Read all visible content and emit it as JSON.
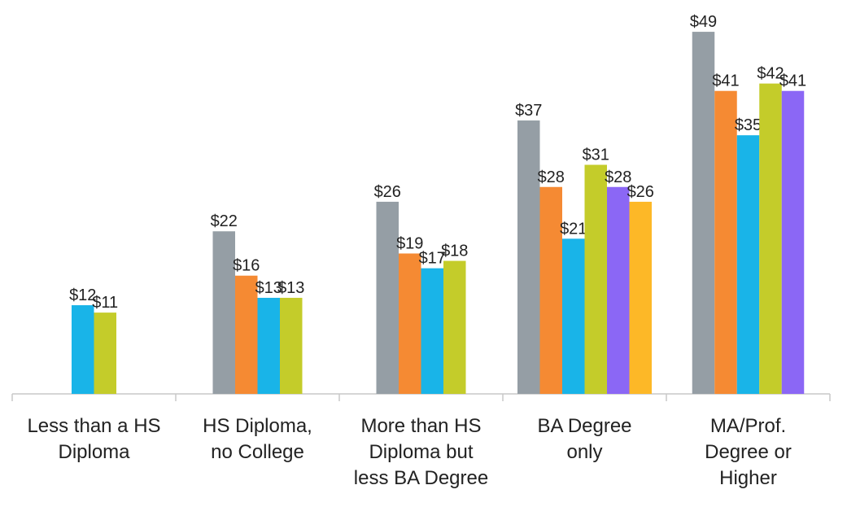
{
  "chart_data": {
    "type": "bar",
    "categories": [
      "Less than a HS\nDiploma",
      "HS Diploma,\nno College",
      "More than HS\nDiploma but\nless BA Degree",
      "BA Degree\nonly",
      "MA/Prof.\nDegree or\nHigher"
    ],
    "series": [
      {
        "color": "#959ea5",
        "values": [
          null,
          22,
          26,
          37,
          49
        ],
        "value_labels": [
          null,
          "$22",
          "$26",
          "$37",
          "$49"
        ]
      },
      {
        "color": "#f58a33",
        "values": [
          null,
          16,
          19,
          28,
          41
        ],
        "value_labels": [
          null,
          "$16",
          "$19",
          "$28",
          "$41"
        ]
      },
      {
        "color": "#19b4e8",
        "values": [
          12,
          13,
          17,
          21,
          35
        ],
        "value_labels": [
          "$12",
          "$13",
          "$17",
          "$21",
          "$35"
        ]
      },
      {
        "color": "#c4cc2a",
        "values": [
          11,
          13,
          18,
          31,
          42
        ],
        "value_labels": [
          "$11",
          "$13",
          "$18",
          "$31",
          "$42"
        ]
      },
      {
        "color": "#8b67f5",
        "values": [
          null,
          null,
          null,
          28,
          41
        ],
        "value_labels": [
          null,
          null,
          null,
          "$28",
          "$41"
        ]
      },
      {
        "color": "#fdb827",
        "values": [
          null,
          null,
          null,
          26,
          null
        ],
        "value_labels": [
          null,
          null,
          null,
          "$26",
          null
        ]
      }
    ],
    "ylim": [
      0,
      50
    ]
  }
}
